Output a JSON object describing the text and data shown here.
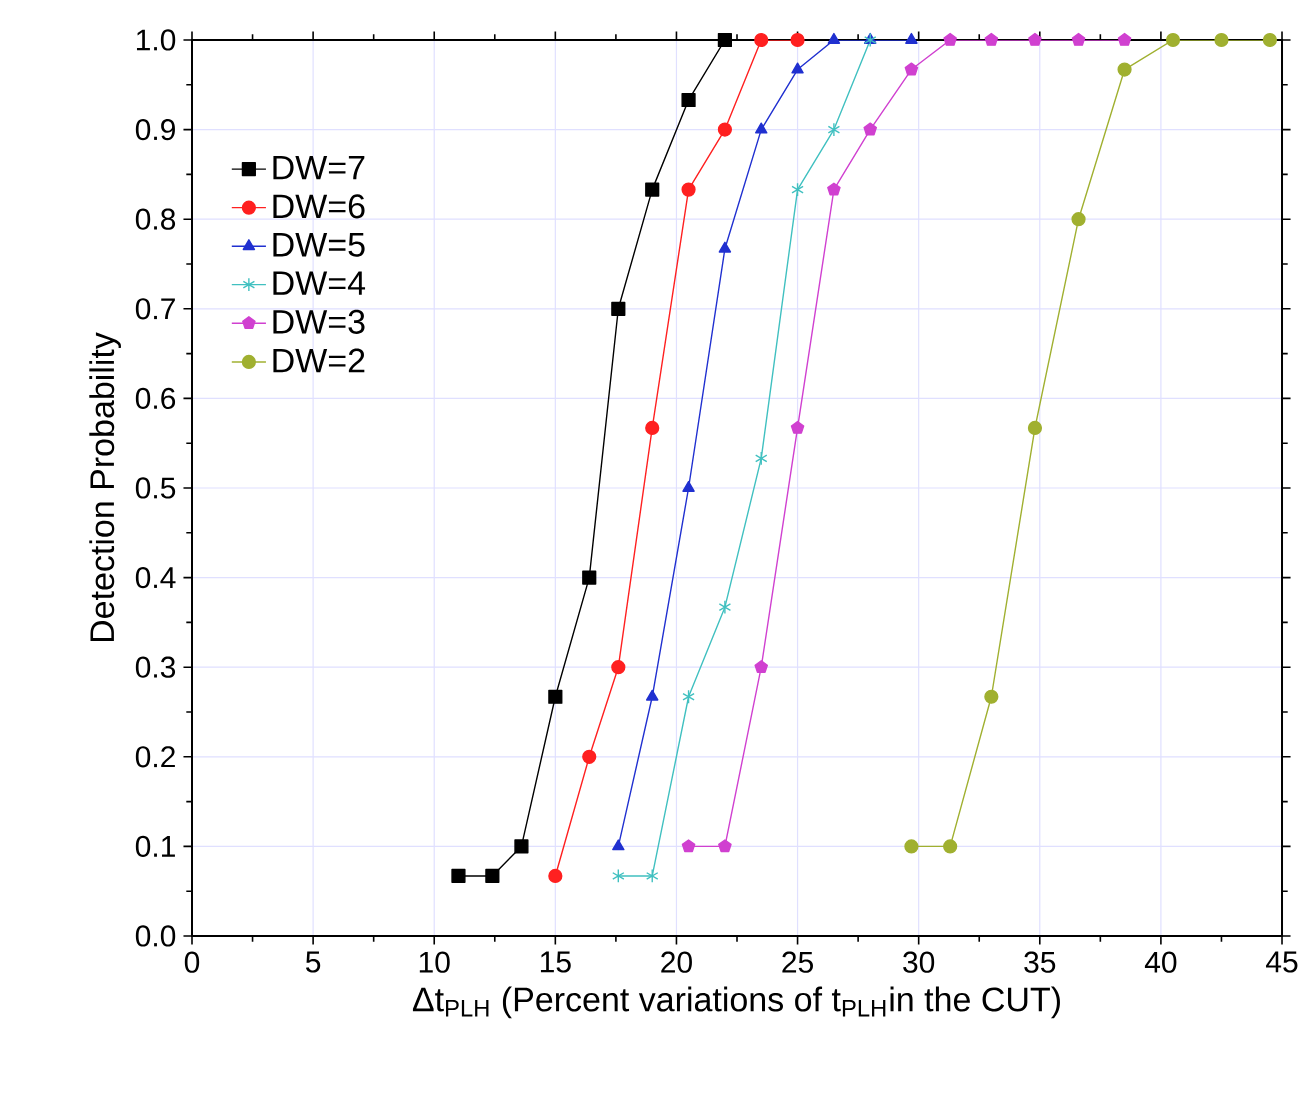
{
  "chart_data": {
    "type": "line",
    "xlabel": "Δt$_{PLH}$ (Percent variations of t$_{PLH}$in the CUT)",
    "ylabel": "Detection Probability",
    "xlim": [
      0,
      45
    ],
    "ylim": [
      0,
      1
    ],
    "xticks": [
      0,
      5,
      10,
      15,
      20,
      25,
      30,
      35,
      40,
      45
    ],
    "yticks": [
      {
        "value": 0,
        "label": "0.0"
      },
      0.1,
      0.2,
      0.3,
      0.4,
      0.5,
      0.6,
      0.7,
      0.8,
      0.9,
      {
        "value": 1,
        "label": "1.0"
      }
    ],
    "grid": true,
    "legend": "top left",
    "line_style": "solid",
    "series": [
      {
        "name": "DW=7",
        "color": "#000000",
        "marker": "square",
        "x": [
          11,
          12.4,
          13.6,
          15,
          16.4,
          17.6,
          19,
          20.5,
          22
        ],
        "values": [
          0.067,
          0.067,
          0.1,
          0.267,
          0.4,
          0.7,
          0.833,
          0.933,
          1.0
        ]
      },
      {
        "name": "DW=6",
        "color": "#ff2020",
        "marker": "circle",
        "x": [
          15,
          16.4,
          17.6,
          19,
          20.5,
          22,
          23.5,
          25
        ],
        "values": [
          0.067,
          0.2,
          0.3,
          0.567,
          0.833,
          0.9,
          1.0,
          1.0
        ]
      },
      {
        "name": "DW=5",
        "color": "#2030d0",
        "marker": "triangle",
        "x": [
          17.6,
          19,
          20.5,
          22,
          23.5,
          25,
          26.5,
          28,
          29.7
        ],
        "values": [
          0.1,
          0.267,
          0.5,
          0.767,
          0.9,
          0.967,
          1.0,
          1.0,
          1.0
        ]
      },
      {
        "name": "DW=4",
        "color": "#40c0c0",
        "marker": "cross",
        "x": [
          17.6,
          19,
          20.5,
          22,
          23.5,
          25,
          26.5,
          28
        ],
        "values": [
          0.067,
          0.067,
          0.267,
          0.367,
          0.533,
          0.833,
          0.9,
          1.0
        ]
      },
      {
        "name": "DW=3",
        "color": "#d040d0",
        "marker": "star",
        "x": [
          20.5,
          22,
          23.5,
          25,
          26.5,
          28,
          29.7,
          31.3,
          33,
          34.8,
          36.6,
          38.5
        ],
        "values": [
          0.1,
          0.1,
          0.3,
          0.567,
          0.833,
          0.9,
          0.967,
          1.0,
          1.0,
          1.0,
          1.0,
          1.0
        ]
      },
      {
        "name": "DW=2",
        "color": "#a0b030",
        "marker": "circle",
        "x": [
          29.7,
          31.3,
          33,
          34.8,
          36.6,
          38.5,
          40.5,
          42.5,
          44.5
        ],
        "values": [
          0.1,
          0.1,
          0.267,
          0.567,
          0.8,
          0.967,
          1.0,
          1.0,
          1.0
        ]
      }
    ]
  }
}
